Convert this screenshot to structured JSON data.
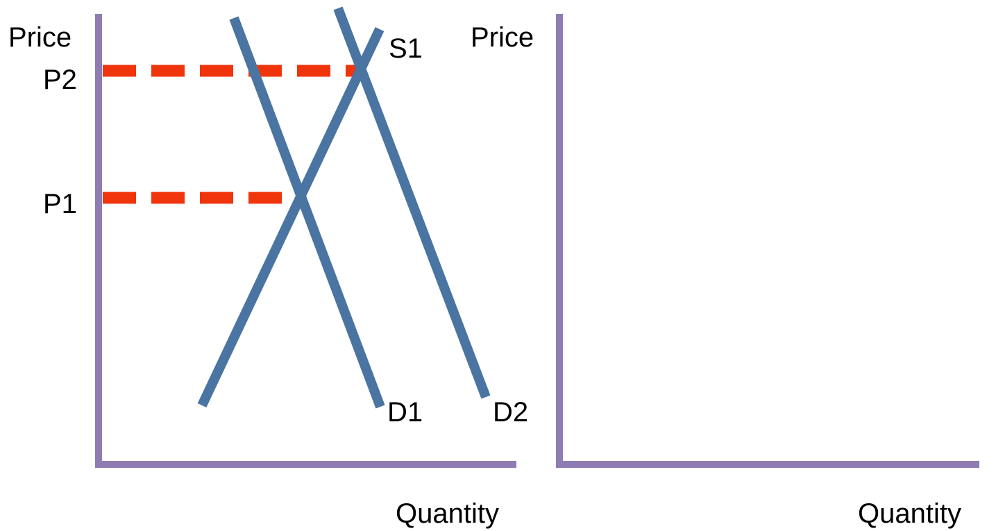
{
  "left_panel": {
    "y_axis_label": "Price",
    "x_axis_label": "Quantity",
    "price_labels": {
      "p2": "P2",
      "p1": "P1"
    },
    "curve_labels": {
      "s1": "S1",
      "d1": "D1",
      "d2": "D2"
    }
  },
  "right_panel": {
    "y_axis_label": "Price",
    "x_axis_label": "Quantity"
  },
  "colors": {
    "axis": "#8E7CB3",
    "curve": "#4A74A1",
    "dashed": "#F0340C"
  }
}
